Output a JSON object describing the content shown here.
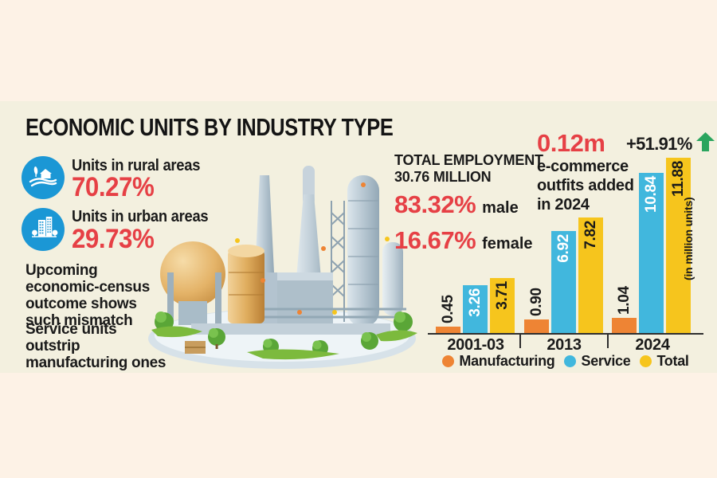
{
  "title": "ECONOMIC UNITS BY INDUSTRY TYPE",
  "stats": {
    "rural": {
      "label": "Units in rural areas",
      "value": "70.27%",
      "icon": "farm-icon"
    },
    "urban": {
      "label": "Units in urban areas",
      "value": "29.73%",
      "icon": "buildings-icon"
    },
    "note1": "Upcoming economic-census outcome shows such mismatch",
    "note2": "Service units outstrip manufacturing ones"
  },
  "employment": {
    "line1": "TOTAL EMPLOYMENT",
    "line2": "30.76 MILLION",
    "male_value": "83.32%",
    "male_label": "male",
    "female_value": "16.67%",
    "female_label": "female"
  },
  "ecommerce": {
    "value": "0.12m",
    "line1": "e-commerce",
    "line2": "outfits added",
    "line3": "in 2024",
    "growth": "+51.91%",
    "growth_icon": "up-arrow-icon"
  },
  "chart_data": {
    "type": "bar",
    "categories": [
      "2001-03",
      "2013",
      "2024"
    ],
    "series": [
      {
        "name": "Manufacturing",
        "color": "#ee8434",
        "values": [
          0.45,
          0.9,
          1.04
        ]
      },
      {
        "name": "Service",
        "color": "#41b7dd",
        "values": [
          3.26,
          6.92,
          10.84
        ]
      },
      {
        "name": "Total",
        "color": "#f6c51d",
        "values": [
          3.71,
          7.82,
          11.88
        ]
      }
    ],
    "ylabel": "(in million units)",
    "ylim": [
      0,
      11.88
    ],
    "grid": false,
    "legend_position": "bottom",
    "value_labels": "rotated-90"
  },
  "colors": {
    "accent_red": "#e64045",
    "icon_blue": "#1b97d5",
    "bar_orange": "#ee8434",
    "bar_cyan": "#41b7dd",
    "bar_yellow": "#f6c51d",
    "growth_green": "#2aa55e",
    "panel_bg": "#f3f0df",
    "band_bg": "#fdf2e6",
    "text": "#1a1a1a"
  }
}
